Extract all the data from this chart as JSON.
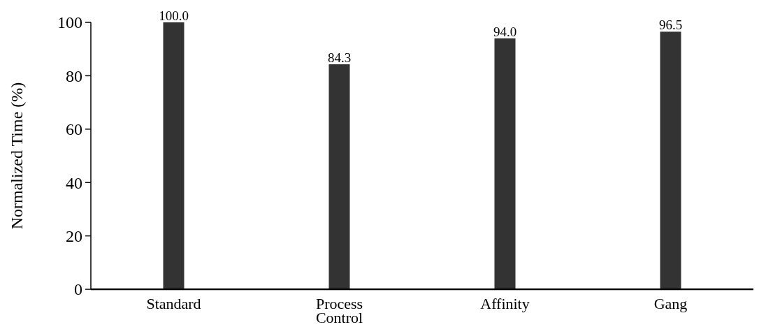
{
  "chart_data": {
    "type": "bar",
    "ylabel": "Normalized Time (%)",
    "categories": [
      "Standard",
      "Process Control",
      "Affinity",
      "Gang"
    ],
    "values": [
      100.0,
      84.3,
      94.0,
      96.5
    ],
    "color": "#333333",
    "ylim": [
      0,
      100
    ],
    "yticks": [
      0,
      20,
      40,
      60,
      80,
      100
    ],
    "value_labels": [
      "100.0",
      "84.3",
      "94.0",
      "96.5"
    ],
    "grid": false
  }
}
